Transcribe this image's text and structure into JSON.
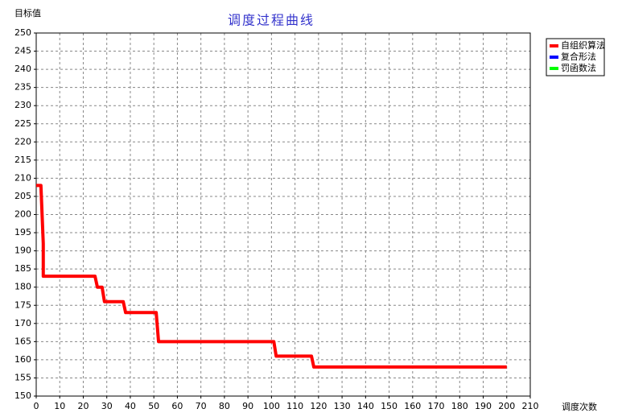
{
  "chart_data": {
    "type": "line",
    "title": "调度过程曲线",
    "xlabel": "调度次数",
    "ylabel": "目标值",
    "x": [
      0,
      2,
      2.5,
      3,
      3,
      25,
      26,
      28,
      29,
      37,
      38,
      51,
      52,
      101,
      102,
      117,
      118,
      200
    ],
    "series": [
      {
        "name": "自组织算法",
        "color": "#ff0000",
        "values": [
          208,
          208,
          200,
          192,
          183,
          183,
          180,
          180,
          176,
          176,
          173,
          173,
          165,
          165,
          161,
          161,
          158,
          158
        ]
      },
      {
        "name": "复合形法",
        "color": "#0000ff",
        "values": [
          null,
          null,
          null,
          null,
          null,
          null,
          null,
          null,
          null,
          null,
          null,
          null,
          null,
          null,
          null,
          null,
          null,
          null
        ]
      },
      {
        "name": "罚函数法",
        "color": "#00ff00",
        "values": [
          null,
          null,
          null,
          null,
          null,
          null,
          null,
          null,
          null,
          null,
          null,
          null,
          null,
          null,
          null,
          null,
          null,
          null
        ]
      }
    ],
    "xlim": [
      0,
      210
    ],
    "xticks": [
      0,
      10,
      20,
      30,
      40,
      50,
      60,
      70,
      80,
      90,
      100,
      110,
      120,
      130,
      140,
      150,
      160,
      170,
      180,
      190,
      200,
      210
    ],
    "ylim": [
      150,
      250
    ],
    "yticks": [
      150,
      155,
      160,
      165,
      170,
      175,
      180,
      185,
      190,
      195,
      200,
      205,
      210,
      215,
      220,
      225,
      230,
      235,
      240,
      245,
      250
    ],
    "grid": true,
    "legend": "top-right"
  }
}
